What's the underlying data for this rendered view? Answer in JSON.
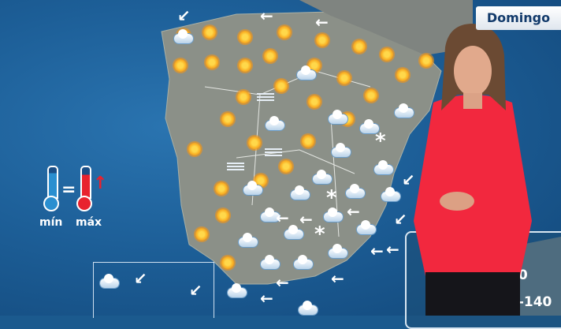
{
  "header": {
    "day_label": "Domingo"
  },
  "legend": {
    "min_label": "mín",
    "max_label": "máx",
    "min_color": "#2a8fd0",
    "max_color": "#e8222e"
  },
  "info_panel": {
    "line1": "00",
    "line2": "0-140"
  },
  "colors": {
    "sea": "#1d5f98",
    "land": "#8a8f86",
    "presenter_top": "#f2283e"
  },
  "weather_icons": [
    "sun",
    "sun-cloud",
    "sun",
    "sun",
    "sun",
    "sun",
    "sun",
    "sun",
    "sun",
    "sun",
    "sun",
    "sun",
    "sun",
    "sun",
    "sun",
    "cloud",
    "sun",
    "sun",
    "fog",
    "sun",
    "sun",
    "sun",
    "sun",
    "cloud",
    "cloud",
    "sun",
    "sun",
    "fog",
    "cloud",
    "cloud",
    "cloud",
    "sun",
    "sun",
    "fog",
    "cloud",
    "snow",
    "cloud",
    "sun",
    "sun",
    "cloud",
    "cloud",
    "cloud",
    "snow",
    "cloud",
    "sun",
    "cloud",
    "cloud",
    "cloud",
    "snow",
    "cloud",
    "sun",
    "cloud",
    "cloud",
    "cloud",
    "sun",
    "cloud",
    "cloud",
    "cloud",
    "cloud"
  ],
  "wind_arrows": [
    "sw",
    "w",
    "w",
    "sw",
    "w",
    "w",
    "w",
    "w",
    "w",
    "w",
    "w",
    "w",
    "sw",
    "sw",
    "sw"
  ]
}
